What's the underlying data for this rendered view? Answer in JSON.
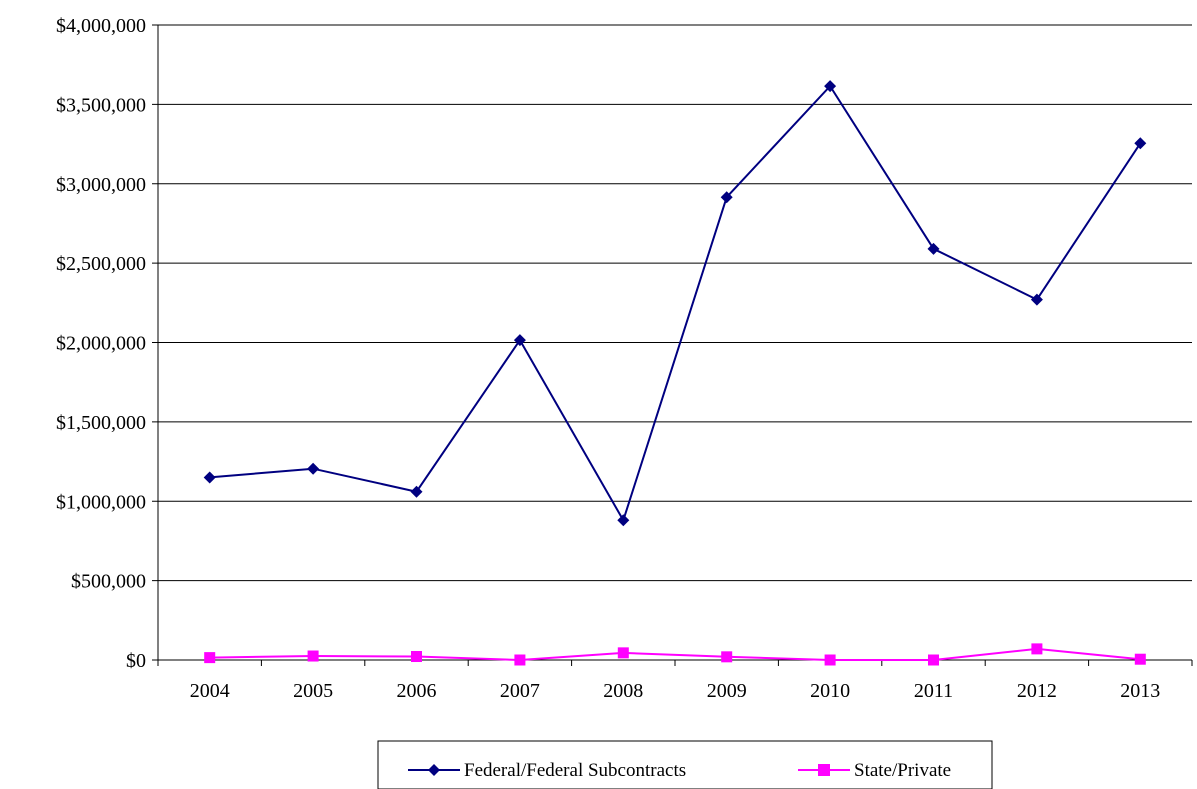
{
  "chart_data": {
    "type": "line",
    "title": "",
    "xlabel": "",
    "ylabel": "",
    "x": [
      "2004",
      "2005",
      "2006",
      "2007",
      "2008",
      "2009",
      "2010",
      "2011",
      "2012",
      "2013"
    ],
    "ylim": [
      0,
      4000000
    ],
    "yticks": [
      0,
      500000,
      1000000,
      1500000,
      2000000,
      2500000,
      3000000,
      3500000,
      4000000
    ],
    "ytick_labels": [
      "$0",
      "$500,000",
      "$1,000,000",
      "$1,500,000",
      "$2,000,000",
      "$2,500,000",
      "$3,000,000",
      "$3,500,000",
      "$4,000,000"
    ],
    "grid": true,
    "legend_position": "bottom-center",
    "series": [
      {
        "name": "Federal/Federal Subcontracts",
        "color": "#000080",
        "marker": "diamond",
        "values": [
          1150000,
          1205000,
          1060000,
          2015000,
          880000,
          2915000,
          3615000,
          2590000,
          2270000,
          3255000
        ]
      },
      {
        "name": "State/Private",
        "color": "#FF00FF",
        "marker": "square",
        "values": [
          15000,
          25000,
          22000,
          0,
          45000,
          20000,
          0,
          0,
          70000,
          5000
        ]
      }
    ]
  }
}
